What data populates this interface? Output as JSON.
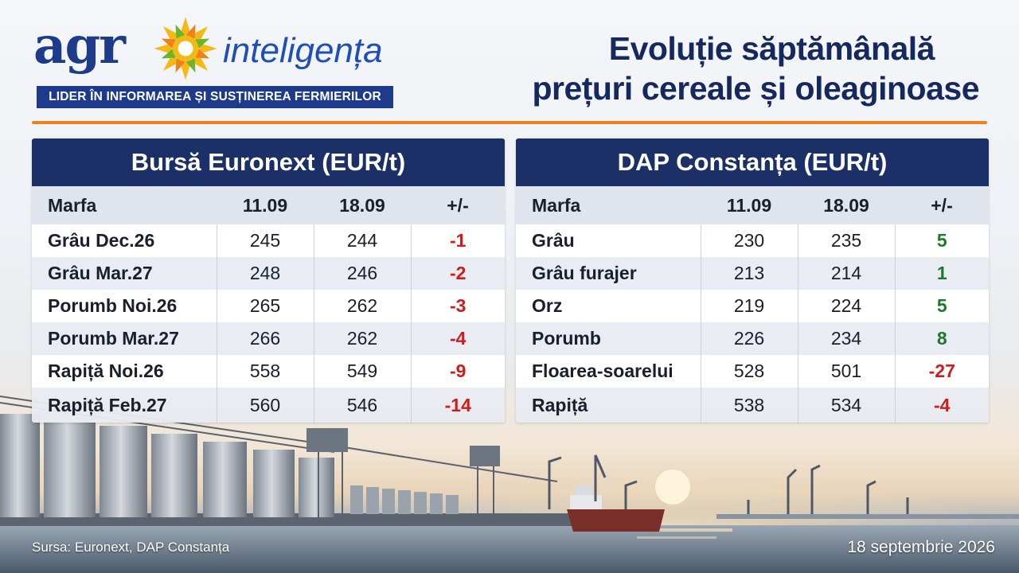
{
  "brand": {
    "name_left": "agr",
    "name_right": "inteligența",
    "tagline": "LIDER ÎN INFORMAREA ȘI SUSȚINEREA FERMIERILOR",
    "colors": {
      "navy": "#1e3a8a",
      "orange": "#f07f1c",
      "yellow": "#f5b914",
      "green": "#6bb42e"
    }
  },
  "title": {
    "line1": "Evoluție săptămânală",
    "line2": "prețuri cereale și oleaginoase"
  },
  "tables": [
    {
      "title": "Bursă Euronext (EUR/t)",
      "headers": [
        "Marfa",
        "11.09",
        "18.09",
        "+/-"
      ],
      "rows": [
        {
          "name": "Grâu Dec.26",
          "prev": "245",
          "curr": "244",
          "change": "-1"
        },
        {
          "name": "Grâu Mar.27",
          "prev": "248",
          "curr": "246",
          "change": "-2"
        },
        {
          "name": "Porumb Noi.26",
          "prev": "265",
          "curr": "262",
          "change": "-3"
        },
        {
          "name": "Porumb Mar.27",
          "prev": "266",
          "curr": "262",
          "change": "-4"
        },
        {
          "name": "Rapiță Noi.26",
          "prev": "558",
          "curr": "549",
          "change": "-9"
        },
        {
          "name": "Rapiță Feb.27",
          "prev": "560",
          "curr": "546",
          "change": "-14"
        }
      ]
    },
    {
      "title": "DAP Constanța (EUR/t)",
      "headers": [
        "Marfa",
        "11.09",
        "18.09",
        "+/-"
      ],
      "rows": [
        {
          "name": "Grâu",
          "prev": "230",
          "curr": "235",
          "change": "5"
        },
        {
          "name": "Grâu furajer",
          "prev": "213",
          "curr": "214",
          "change": "1"
        },
        {
          "name": "Orz",
          "prev": "219",
          "curr": "224",
          "change": "5"
        },
        {
          "name": "Porumb",
          "prev": "226",
          "curr": "234",
          "change": "8"
        },
        {
          "name": "Floarea-soarelui",
          "prev": "528",
          "curr": "501",
          "change": "-27"
        },
        {
          "name": "Rapiță",
          "prev": "538",
          "curr": "534",
          "change": "-4"
        }
      ]
    }
  ],
  "footer": {
    "source": "Sursa: Euronext, DAP Constanța",
    "date": "18 septembrie 2026"
  },
  "colors": {
    "negative": "#d01b1b",
    "positive": "#1c7a2e",
    "header_bg": "#1a3067",
    "rule": "#f07f1c"
  }
}
